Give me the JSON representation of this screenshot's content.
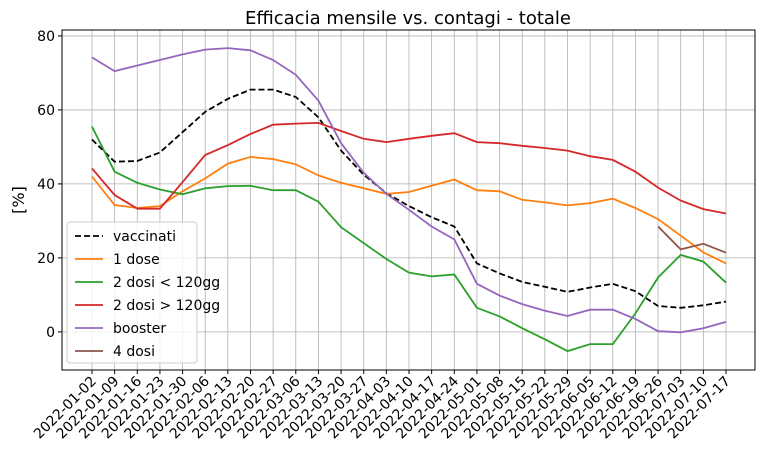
{
  "chart_data": {
    "type": "line",
    "title": "Efficacia mensile vs. contagi - totale",
    "ylabel": "[%]",
    "categories": [
      "2022-01-02",
      "2022-01-09",
      "2022-01-16",
      "2022-01-23",
      "2022-01-30",
      "2022-02-06",
      "2022-02-13",
      "2022-02-20",
      "2022-02-27",
      "2022-03-06",
      "2022-03-13",
      "2022-03-20",
      "2022-03-27",
      "2022-04-03",
      "2022-04-10",
      "2022-04-17",
      "2022-04-24",
      "2022-05-01",
      "2022-05-08",
      "2022-05-15",
      "2022-05-22",
      "2022-05-29",
      "2022-06-05",
      "2022-06-12",
      "2022-06-19",
      "2022-06-26",
      "2022-07-03",
      "2022-07-10",
      "2022-07-17"
    ],
    "series": [
      {
        "name": "vaccinati",
        "color": "#000000",
        "dashed": true,
        "values": [
          52,
          46,
          46.2,
          48.5,
          54,
          59.5,
          63,
          65.5,
          65.5,
          63.5,
          58,
          49,
          42.5,
          37.5,
          34,
          31,
          28.5,
          18.5,
          15.8,
          13.5,
          12.2,
          10.8,
          12,
          13,
          11,
          7,
          6.5,
          7.2,
          8.2
        ]
      },
      {
        "name": "1 dose",
        "color": "#ff7f0e",
        "values": [
          42,
          34.3,
          33.5,
          34,
          38,
          41.5,
          45.5,
          47.3,
          46.7,
          45.3,
          42.3,
          40.3,
          38.8,
          37.3,
          37.8,
          39.5,
          41.2,
          38.3,
          38,
          35.7,
          35,
          34.2,
          34.8,
          36,
          33.5,
          30.5,
          26,
          21.5,
          18.5
        ]
      },
      {
        "name": "2 dosi < 120gg",
        "color": "#2ca02c",
        "values": [
          55.5,
          43.3,
          40.3,
          38.5,
          37.2,
          38.8,
          39.4,
          39.5,
          38.3,
          38.3,
          35.2,
          28.3,
          24,
          19.7,
          16,
          15,
          15.5,
          6.5,
          4.2,
          1,
          -2,
          -5.2,
          -3.3,
          -3.3,
          5,
          14.7,
          20.8,
          19,
          13.3
        ]
      },
      {
        "name": "2 dosi > 120gg",
        "color": "#d62728",
        "values": [
          44.2,
          37,
          33.3,
          33.3,
          40.5,
          47.8,
          50.5,
          53.5,
          56,
          56.3,
          56.5,
          54.3,
          52.2,
          51.3,
          52.2,
          53,
          53.7,
          51.3,
          51,
          50.3,
          49.7,
          49,
          47.5,
          46.5,
          43.3,
          39,
          35.5,
          33.2,
          32
        ]
      },
      {
        "name": "booster",
        "color": "#9467bd",
        "values": [
          74.2,
          70.5,
          72,
          73.5,
          75,
          76.3,
          76.7,
          76.1,
          73.5,
          69.5,
          62.5,
          51,
          43,
          37.3,
          33,
          28.5,
          25,
          13,
          9.8,
          7.5,
          5.7,
          4.3,
          6,
          6,
          3.5,
          0.2,
          -0.1,
          1,
          2.7
        ]
      },
      {
        "name": "4 dosi",
        "color": "#8c564b",
        "values": [
          null,
          null,
          null,
          null,
          null,
          null,
          null,
          null,
          null,
          null,
          null,
          null,
          null,
          null,
          null,
          null,
          null,
          null,
          null,
          null,
          null,
          null,
          null,
          null,
          null,
          28.5,
          22.3,
          23.8,
          21.4
        ]
      }
    ],
    "ylim": [
      -10.3,
      81.6
    ],
    "yticks": [
      0,
      20,
      40,
      60,
      80
    ],
    "grid": true,
    "legend": "lower left"
  }
}
